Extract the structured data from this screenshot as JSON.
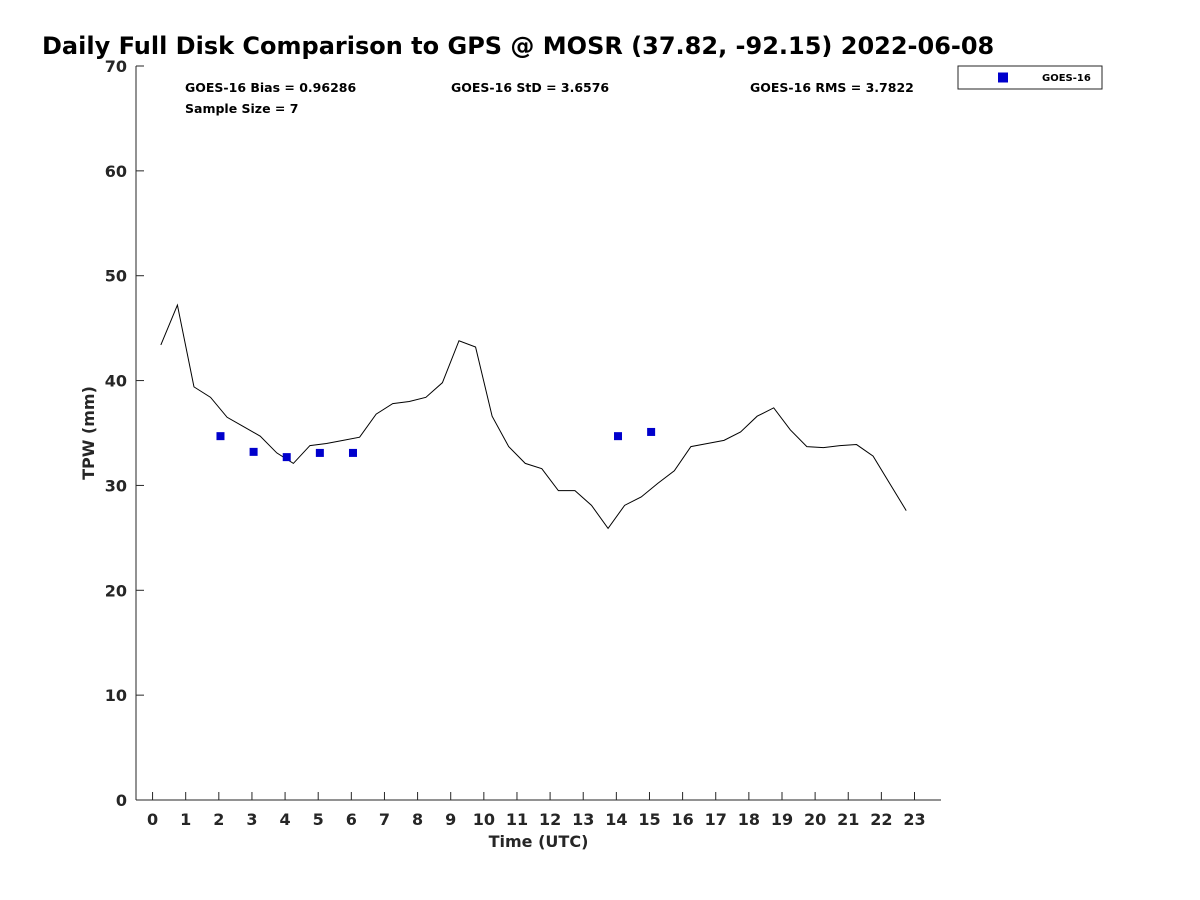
{
  "chart_data": {
    "type": "line",
    "title": "Daily Full Disk Comparison to GPS @ MOSR (37.82, -92.15) 2022-06-08",
    "xlabel": "Time (UTC)",
    "ylabel": "TPW (mm)",
    "xlim": [
      -0.5,
      23.8
    ],
    "ylim": [
      0,
      70
    ],
    "x_ticks": [
      0,
      1,
      2,
      3,
      4,
      5,
      6,
      7,
      8,
      9,
      10,
      11,
      12,
      13,
      14,
      15,
      16,
      17,
      18,
      19,
      20,
      21,
      22,
      23
    ],
    "x_tick_labels": [
      "0",
      "1",
      "2",
      "3",
      "4",
      "5",
      "6",
      "7",
      "8",
      "9",
      "10",
      "11",
      "12",
      "13",
      "14",
      "15",
      "16",
      "17",
      "18",
      "19",
      "20",
      "21",
      "22",
      "23"
    ],
    "y_ticks": [
      0,
      10,
      20,
      30,
      40,
      50,
      60,
      70
    ],
    "y_tick_labels": [
      "0",
      "10",
      "20",
      "30",
      "40",
      "50",
      "60",
      "70"
    ],
    "grid": false,
    "legend_position": "top-right outside plot",
    "stats": {
      "bias": "GOES-16 Bias = 0.96286",
      "std": "GOES-16 StD = 3.6576",
      "rms": "GOES-16 RMS = 3.7822",
      "sample_size": "Sample Size = 7"
    },
    "series": [
      {
        "name": "GPS",
        "kind": "line",
        "color": "#000000",
        "x": [
          0.25,
          0.75,
          1.25,
          1.75,
          2.25,
          2.75,
          3.25,
          3.75,
          4.25,
          4.75,
          5.25,
          5.75,
          6.25,
          6.75,
          7.25,
          7.75,
          8.25,
          8.75,
          9.25,
          9.75,
          10.25,
          10.75,
          11.25,
          11.75,
          12.25,
          12.75,
          13.25,
          13.75,
          14.25,
          14.75,
          15.25,
          15.75,
          16.25,
          16.75,
          17.25,
          17.75,
          18.25,
          18.75,
          19.25,
          19.75,
          20.25,
          20.75,
          21.25,
          21.75,
          22.25,
          22.75
        ],
        "values": [
          43.4,
          47.2,
          39.4,
          38.4,
          36.5,
          35.6,
          34.7,
          33.1,
          32.1,
          33.8,
          34.0,
          34.3,
          34.6,
          36.8,
          37.8,
          38.0,
          38.4,
          39.8,
          43.8,
          43.2,
          36.6,
          33.7,
          32.1,
          31.6,
          29.5,
          29.5,
          28.1,
          25.9,
          28.1,
          28.9,
          30.2,
          31.4,
          33.7,
          34.0,
          34.3,
          35.1,
          36.6,
          37.4,
          35.3,
          33.7,
          33.6,
          33.8,
          33.9,
          32.8,
          30.2,
          27.6
        ]
      },
      {
        "name": "GOES-16",
        "kind": "scatter",
        "color": "#0000cc",
        "x": [
          2.05,
          3.05,
          4.05,
          5.05,
          6.05,
          14.05,
          15.05
        ],
        "values": [
          34.7,
          33.2,
          32.7,
          33.1,
          33.1,
          34.7,
          35.1
        ]
      }
    ],
    "legend": [
      {
        "label": "GOES-16",
        "color": "#0000cc",
        "marker": "square"
      }
    ]
  }
}
